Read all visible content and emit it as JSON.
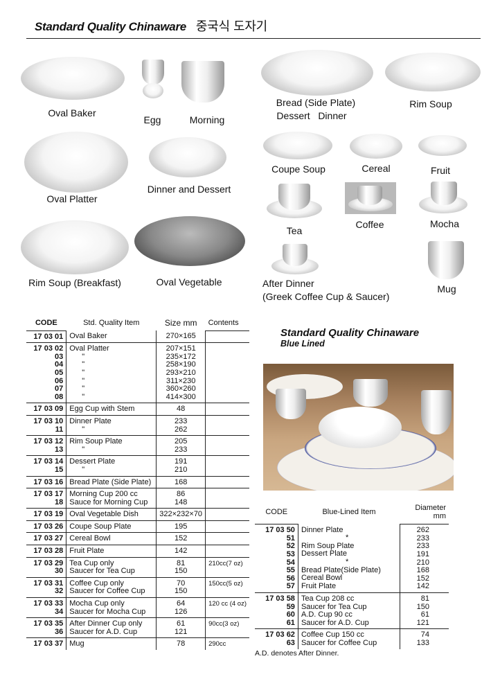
{
  "header": {
    "title": "Standard Quality Chinaware",
    "title_ko": "중국식 도자기"
  },
  "product_labels": {
    "oval_baker": "Oval Baker",
    "egg": "Egg",
    "morning": "Morning",
    "bread_1": "Bread (Side Plate)",
    "bread_2": "Dessert   Dinner",
    "rim_soup": "Rim Soup",
    "oval_platter": "Oval Platter",
    "dinner_dessert": "Dinner and Dessert",
    "coupe_soup": "Coupe Soup",
    "cereal": "Cereal",
    "fruit": "Fruit",
    "tea": "Tea",
    "coffee": "Coffee",
    "mocha": "Mocha",
    "rim_soup_breakfast": "Rim Soup (Breakfast)",
    "oval_vegetable": "Oval Vegetable",
    "after_dinner_1": "After Dinner",
    "after_dinner_2": "(Greek Coffee Cup & Saucer)",
    "mug": "Mug"
  },
  "std_table": {
    "headers": [
      "CODE",
      "Std. Quality Item",
      "Size mm",
      "Contents"
    ],
    "groups": [
      {
        "codes": [
          "17 03 01"
        ],
        "items": [
          "Oval Baker"
        ],
        "sizes": [
          "270×165"
        ],
        "contents": [
          ""
        ]
      },
      {
        "codes": [
          "17 03 02",
          "03",
          "04",
          "05",
          "06",
          "07",
          "08"
        ],
        "items": [
          "Oval Platter",
          "\"",
          "\"",
          "\"",
          "\"",
          "\"",
          "\""
        ],
        "sizes": [
          "207×151",
          "235×172",
          "258×190",
          "293×210",
          "311×230",
          "360×260",
          "414×300"
        ],
        "contents": [
          ""
        ]
      },
      {
        "codes": [
          "17 03 09"
        ],
        "items": [
          "Egg Cup with Stem"
        ],
        "sizes": [
          "48"
        ],
        "contents": [
          ""
        ]
      },
      {
        "codes": [
          "17 03 10",
          "11"
        ],
        "items": [
          "Dinner Plate",
          "\""
        ],
        "sizes": [
          "233",
          "262"
        ],
        "contents": [
          ""
        ]
      },
      {
        "codes": [
          "17 03 12",
          "13"
        ],
        "items": [
          "Rim Soup Plate",
          "\""
        ],
        "sizes": [
          "205",
          "233"
        ],
        "contents": [
          ""
        ]
      },
      {
        "codes": [
          "17 03 14",
          "15"
        ],
        "items": [
          "Dessert Plate",
          "\""
        ],
        "sizes": [
          "191",
          "210"
        ],
        "contents": [
          ""
        ]
      },
      {
        "codes": [
          "17 03 16"
        ],
        "items": [
          "Bread Plate (Side Plate)"
        ],
        "sizes": [
          "168"
        ],
        "contents": [
          ""
        ]
      },
      {
        "codes": [
          "17 03 17",
          "18"
        ],
        "items": [
          "Morning Cup 200 cc",
          "Sauce for Morning Cup"
        ],
        "sizes": [
          "86",
          "148"
        ],
        "contents": [
          ""
        ]
      },
      {
        "codes": [
          "17 03 19"
        ],
        "items": [
          "Oval Vegetable Dish"
        ],
        "sizes": [
          "322×232×70"
        ],
        "contents": [
          ""
        ]
      },
      {
        "codes": [
          "17 03 26"
        ],
        "items": [
          "Coupe Soup Plate"
        ],
        "sizes": [
          "195"
        ],
        "contents": [
          ""
        ]
      },
      {
        "codes": [
          "17 03 27"
        ],
        "items": [
          "Cereal Bowl"
        ],
        "sizes": [
          "152"
        ],
        "contents": [
          ""
        ]
      },
      {
        "codes": [
          "17 03 28"
        ],
        "items": [
          "Fruit Plate"
        ],
        "sizes": [
          "142"
        ],
        "contents": [
          ""
        ]
      },
      {
        "codes": [
          "17 03 29",
          "30"
        ],
        "items": [
          "Tea Cup only",
          "Saucer for Tea Cup"
        ],
        "sizes": [
          "81",
          "150"
        ],
        "contents": [
          "210cc(7 oz)"
        ]
      },
      {
        "codes": [
          "17 03 31",
          "32"
        ],
        "items": [
          "Coffee Cup only",
          "Saucer for Coffee Cup"
        ],
        "sizes": [
          "70",
          "150"
        ],
        "contents": [
          "150cc(5 oz)"
        ]
      },
      {
        "codes": [
          "17 03 33",
          "34"
        ],
        "items": [
          "Mocha Cup only",
          "Saucer for Mocha Cup"
        ],
        "sizes": [
          "64",
          "126"
        ],
        "contents": [
          "120 cc (4 oz)"
        ]
      },
      {
        "codes": [
          "17 03 35",
          "36"
        ],
        "items": [
          "After Dinner Cup only",
          "Saucer for A.D. Cup"
        ],
        "sizes": [
          "61",
          "121"
        ],
        "contents": [
          "90cc(3 oz)"
        ]
      },
      {
        "codes": [
          "17 03 37"
        ],
        "items": [
          "Mug"
        ],
        "sizes": [
          "78"
        ],
        "contents": [
          "290cc"
        ]
      }
    ]
  },
  "blue": {
    "title": "Standard Quality Chinaware",
    "subtitle": "Blue Lined",
    "accent": "#1a2a8a",
    "headers": [
      "CODE",
      "Blue-Lined Item",
      "Diameter mm"
    ],
    "groups": [
      {
        "codes": [
          "17 03 50",
          "51",
          "52",
          "53",
          "54",
          "55",
          "56",
          "57"
        ],
        "items": [
          "Dinner Plate",
          "*",
          "Rim Soup Plate",
          "Dessert Plate",
          "*",
          "Bread Plate(Side Plate)",
          "Cereal Bowl",
          "Fruit Plate"
        ],
        "sizes": [
          "262",
          "233",
          "233",
          "191",
          "210",
          "168",
          "152",
          "142"
        ]
      },
      {
        "codes": [
          "17 03 58",
          "59",
          "60",
          "61"
        ],
        "items": [
          "Tea Cup 208 cc",
          "Saucer for Tea Cup",
          "A.D. Cup 90 cc",
          "Saucer for A.D. Cup"
        ],
        "sizes": [
          "81",
          "150",
          "61",
          "121"
        ]
      },
      {
        "codes": [
          "17 03 62",
          "63"
        ],
        "items": [
          "Coffee Cup 150 cc",
          "Saucer for Coffee Cup"
        ],
        "sizes": [
          "74",
          "133"
        ]
      }
    ],
    "note": "A.D. denotes After Dinner."
  }
}
